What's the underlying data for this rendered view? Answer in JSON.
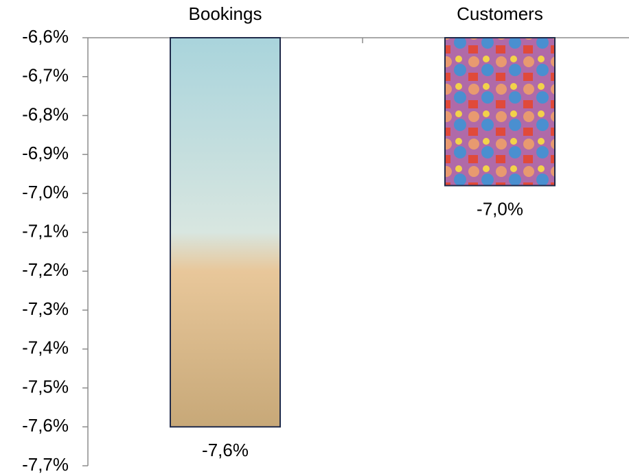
{
  "chart_data": {
    "type": "bar",
    "categories": [
      "Bookings",
      "Customers"
    ],
    "values": [
      -7.6,
      -6.98
    ],
    "value_labels": [
      "-7,6%",
      "-7,0%"
    ],
    "ylim": [
      -7.7,
      -6.6
    ],
    "yticks": [
      {
        "value": -6.6,
        "label": "-6,6%"
      },
      {
        "value": -6.7,
        "label": "-6,7%"
      },
      {
        "value": -6.8,
        "label": "-6,8%"
      },
      {
        "value": -6.9,
        "label": "-6,9%"
      },
      {
        "value": -7.0,
        "label": "-7,0%"
      },
      {
        "value": -7.1,
        "label": "-7,1%"
      },
      {
        "value": -7.2,
        "label": "-7,2%"
      },
      {
        "value": -7.3,
        "label": "-7,3%"
      },
      {
        "value": -7.4,
        "label": "-7,4%"
      },
      {
        "value": -7.5,
        "label": "-7,5%"
      },
      {
        "value": -7.6,
        "label": "-7,6%"
      },
      {
        "value": -7.7,
        "label": "-7,7%"
      }
    ]
  }
}
